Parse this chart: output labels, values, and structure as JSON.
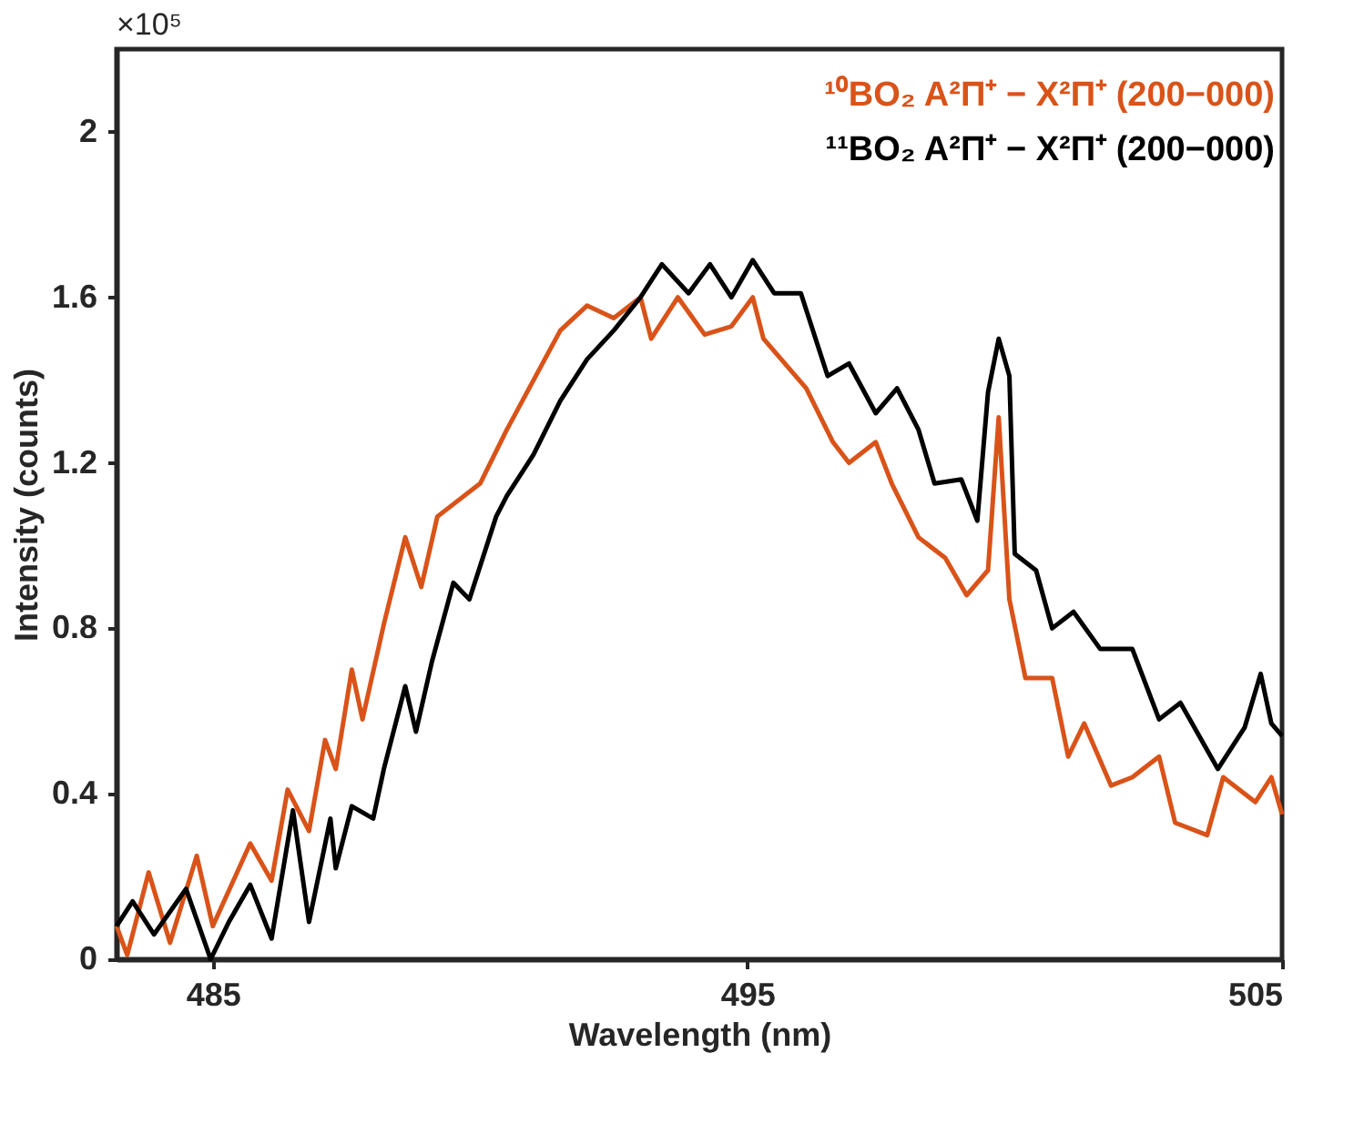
{
  "chart_data": {
    "type": "line",
    "xlabel": "Wavelength (nm)",
    "ylabel": "Intensity (counts)",
    "annotations": [
      "×10⁵"
    ],
    "xlim": [
      483.2,
      505
    ],
    "xticks": [
      485,
      495,
      505
    ],
    "ylim": [
      0,
      2.2
    ],
    "yticks": [
      0,
      0.4,
      0.8,
      1.2,
      1.6,
      2
    ],
    "grid": false,
    "legend": "top right",
    "marker": "none",
    "line_style": "solid",
    "series": [
      {
        "name": "¹⁰BO₂ A²Π⁺ − X²Π⁺ (200−000)",
        "color": "#d95319",
        "x": [
          483.2,
          483.4,
          483.8,
          484.2,
          484.7,
          485.0,
          485.7,
          486.1,
          486.4,
          486.8,
          487.1,
          487.3,
          487.6,
          487.8,
          488.2,
          488.6,
          488.9,
          489.2,
          490.0,
          490.5,
          491.0,
          491.5,
          492.0,
          492.5,
          493.0,
          493.2,
          493.7,
          494.2,
          494.7,
          495.1,
          495.3,
          495.7,
          496.1,
          496.6,
          496.9,
          497.4,
          497.7,
          498.2,
          498.7,
          499.1,
          499.5,
          499.7,
          499.9,
          500.2,
          500.7,
          501.0,
          501.3,
          501.8,
          502.2,
          502.7,
          503.0,
          503.6,
          503.9,
          504.5,
          504.8,
          505.0
        ],
        "values": [
          0.08,
          0.01,
          0.21,
          0.04,
          0.25,
          0.08,
          0.28,
          0.19,
          0.41,
          0.31,
          0.53,
          0.46,
          0.7,
          0.58,
          0.81,
          1.02,
          0.9,
          1.07,
          1.15,
          1.28,
          1.4,
          1.52,
          1.58,
          1.55,
          1.6,
          1.5,
          1.6,
          1.51,
          1.53,
          1.6,
          1.5,
          1.44,
          1.38,
          1.25,
          1.2,
          1.25,
          1.15,
          1.02,
          0.97,
          0.88,
          0.94,
          1.31,
          0.87,
          0.68,
          0.68,
          0.49,
          0.57,
          0.42,
          0.44,
          0.49,
          0.33,
          0.3,
          0.44,
          0.38,
          0.44,
          0.35
        ]
      },
      {
        "name": "¹¹BO₂ A²Π⁺ − X²Π⁺ (200−000)",
        "color": "#000000",
        "x": [
          483.2,
          483.5,
          483.9,
          484.5,
          484.96,
          485.3,
          485.7,
          486.1,
          486.5,
          486.8,
          487.2,
          487.3,
          487.6,
          488.0,
          488.2,
          488.6,
          488.8,
          489.1,
          489.5,
          489.8,
          490.3,
          490.5,
          491.0,
          491.5,
          492.0,
          492.5,
          493.0,
          493.4,
          493.9,
          494.3,
          494.7,
          495.1,
          495.5,
          496.0,
          496.5,
          496.9,
          497.4,
          497.8,
          498.2,
          498.5,
          499.0,
          499.3,
          499.5,
          499.7,
          499.9,
          500.0,
          500.4,
          500.7,
          501.1,
          501.6,
          502.2,
          502.7,
          503.1,
          503.8,
          504.3,
          504.6,
          504.8,
          505.0
        ],
        "values": [
          0.08,
          0.14,
          0.06,
          0.17,
          0.0,
          0.09,
          0.18,
          0.05,
          0.36,
          0.09,
          0.34,
          0.22,
          0.37,
          0.34,
          0.46,
          0.66,
          0.55,
          0.72,
          0.91,
          0.87,
          1.07,
          1.12,
          1.22,
          1.35,
          1.45,
          1.52,
          1.6,
          1.68,
          1.61,
          1.68,
          1.6,
          1.69,
          1.61,
          1.61,
          1.41,
          1.44,
          1.32,
          1.38,
          1.28,
          1.15,
          1.16,
          1.06,
          1.37,
          1.5,
          1.41,
          0.98,
          0.94,
          0.8,
          0.84,
          0.75,
          0.75,
          0.58,
          0.62,
          0.46,
          0.56,
          0.69,
          0.57,
          0.54
        ]
      }
    ]
  }
}
